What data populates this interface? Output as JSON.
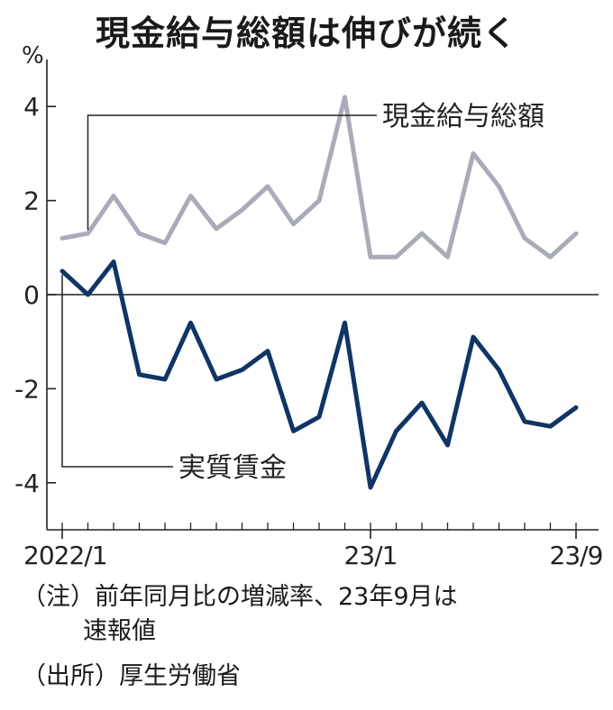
{
  "title": "現金給与総額は伸びが続く",
  "notes": {
    "note_line1": "（注）前年同月比の増減率、23年9月は",
    "note_line2": "速報値",
    "source": "（出所）厚生労働省"
  },
  "chart_data": {
    "type": "line",
    "y_unit": "%",
    "ylim": [
      -5,
      5
    ],
    "y_ticks": [
      4,
      2,
      0,
      -2,
      -4
    ],
    "y_tick_labels": [
      "4",
      "2",
      "0",
      "-2",
      "-4"
    ],
    "x_tick_labels": [
      {
        "index": 0,
        "label": "2022/1"
      },
      {
        "index": 12,
        "label": "23/1"
      },
      {
        "index": 20,
        "label": "23/9"
      }
    ],
    "x": [
      "2022/1",
      "2022/2",
      "2022/3",
      "2022/4",
      "2022/5",
      "2022/6",
      "2022/7",
      "2022/8",
      "2022/9",
      "2022/10",
      "2022/11",
      "2022/12",
      "2023/1",
      "2023/2",
      "2023/3",
      "2023/4",
      "2023/5",
      "2023/6",
      "2023/7",
      "2023/8",
      "2023/9"
    ],
    "series": [
      {
        "name": "現金給与総額",
        "color": "#a9abb9",
        "values": [
          1.2,
          1.3,
          2.1,
          1.3,
          1.1,
          2.1,
          1.4,
          1.8,
          2.3,
          1.5,
          2.0,
          4.2,
          0.8,
          0.8,
          1.3,
          0.8,
          3.0,
          2.3,
          1.2,
          0.8,
          1.3
        ]
      },
      {
        "name": "実質賃金",
        "color": "#0f3564",
        "values": [
          0.5,
          0.0,
          0.7,
          -1.7,
          -1.8,
          -0.6,
          -1.8,
          -1.6,
          -1.2,
          -2.9,
          -2.6,
          -0.6,
          -4.1,
          -2.9,
          -2.3,
          -3.2,
          -0.9,
          -1.6,
          -2.7,
          -2.8,
          -2.4
        ]
      }
    ]
  }
}
